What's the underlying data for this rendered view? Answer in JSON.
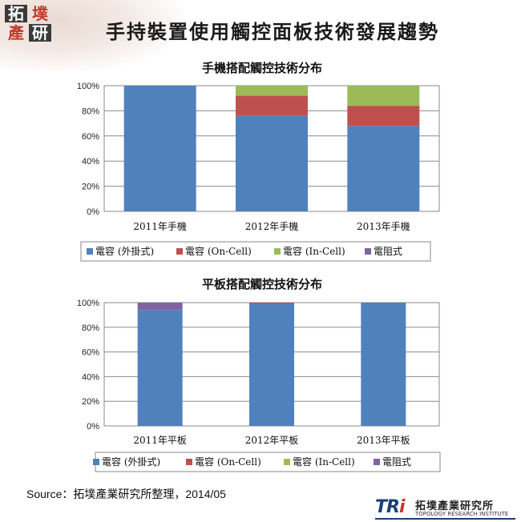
{
  "page": {
    "title": "手持裝置使用觸控面板技術發展趨勢",
    "source": "Source：拓墣產業研究所整理，2014/05"
  },
  "logo": {
    "chars": [
      "拓",
      "墣",
      "產",
      "研"
    ]
  },
  "tri_logo": {
    "mark_t": "TR",
    "mark_i": "i",
    "cn": "拓墣產業研究所",
    "en": "TOPOLOGY RESEARCH INSTITUTE"
  },
  "colors": {
    "series": [
      "#4f81bd",
      "#c0504d",
      "#9bbb59",
      "#8064a2"
    ]
  },
  "chart_data": [
    {
      "type": "bar",
      "stacked": true,
      "title": "手機搭配觸控技術分布",
      "categories": [
        "2011年手機",
        "2012年手機",
        "2013年手機"
      ],
      "series": [
        {
          "name": "電容 (外掛式)",
          "values": [
            100,
            76,
            68
          ]
        },
        {
          "name": "電容 (On-Cell)",
          "values": [
            0,
            16,
            16
          ]
        },
        {
          "name": "電容 (In-Cell)",
          "values": [
            0,
            8,
            16
          ]
        },
        {
          "name": "電阻式",
          "values": [
            0,
            0,
            0
          ]
        }
      ],
      "y_ticks": [
        "100%",
        "80%",
        "60%",
        "40%",
        "20%",
        "0%"
      ],
      "ylim": [
        0,
        100
      ],
      "grid": true,
      "legend": "bottom"
    },
    {
      "type": "bar",
      "stacked": true,
      "title": "平板搭配觸控技術分布",
      "categories": [
        "2011年平板",
        "2012年平板",
        "2013年平板"
      ],
      "series": [
        {
          "name": "電容 (外掛式)",
          "values": [
            94,
            99,
            100
          ]
        },
        {
          "name": "電容 (On-Cell)",
          "values": [
            0,
            1,
            0
          ]
        },
        {
          "name": "電容 (In-Cell)",
          "values": [
            0,
            0,
            0
          ]
        },
        {
          "name": "電阻式",
          "values": [
            6,
            0,
            0
          ]
        }
      ],
      "y_ticks": [
        "100%",
        "80%",
        "60%",
        "40%",
        "20%",
        "0%"
      ],
      "ylim": [
        0,
        100
      ],
      "grid": true,
      "legend": "bottom"
    }
  ]
}
